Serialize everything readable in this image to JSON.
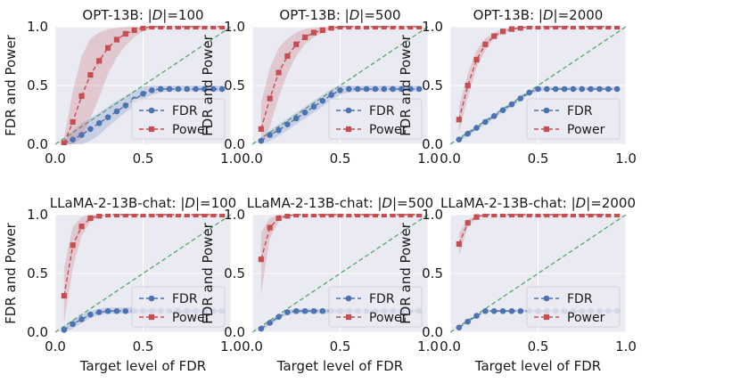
{
  "figure": {
    "xlabel": "Target level of FDR",
    "ylabel": "FDR and Power",
    "colors": {
      "background": "#eaeaf2",
      "grid": "#ffffff",
      "fdr": "#4c72b0",
      "power": "#c44e52",
      "diagonal": "#55a868"
    }
  },
  "chart_data": [
    {
      "type": "line",
      "title_prefix": "OPT-13B: |",
      "title_dset": "D",
      "title_suffix": "|=100",
      "xlim": [
        0,
        1
      ],
      "ylim": [
        0,
        1
      ],
      "xticks": [
        "0.0",
        "0.5",
        "1.0"
      ],
      "yticks": [
        "0.0",
        "0.5",
        "1.0"
      ],
      "xlabel": "",
      "ylabel": "FDR and Power",
      "legend": [
        "FDR",
        "Power"
      ],
      "x": [
        0.05,
        0.1,
        0.15,
        0.2,
        0.25,
        0.3,
        0.35,
        0.4,
        0.45,
        0.5,
        0.55,
        0.6,
        0.65,
        0.7,
        0.75,
        0.8,
        0.85,
        0.9,
        0.95
      ],
      "series": [
        {
          "name": "FDR",
          "values": [
            0.01,
            0.04,
            0.08,
            0.13,
            0.18,
            0.23,
            0.28,
            0.33,
            0.38,
            0.43,
            0.46,
            0.47,
            0.47,
            0.47,
            0.47,
            0.47,
            0.47,
            0.47,
            0.47
          ],
          "band_low": [
            0.0,
            0.0,
            0.0,
            0.03,
            0.08,
            0.15,
            0.21,
            0.27,
            0.33,
            0.38,
            0.42,
            0.44,
            0.45,
            0.45,
            0.45,
            0.45,
            0.45,
            0.45,
            0.45
          ],
          "band_high": [
            0.02,
            0.12,
            0.18,
            0.22,
            0.27,
            0.32,
            0.37,
            0.41,
            0.45,
            0.49,
            0.5,
            0.5,
            0.5,
            0.5,
            0.5,
            0.5,
            0.5,
            0.5,
            0.5
          ]
        },
        {
          "name": "Power",
          "values": [
            0.01,
            0.19,
            0.41,
            0.59,
            0.71,
            0.82,
            0.89,
            0.94,
            0.97,
            0.99,
            1.0,
            1.0,
            1.0,
            1.0,
            1.0,
            1.0,
            1.0,
            1.0,
            1.0
          ],
          "band_low": [
            0.0,
            0.0,
            0.05,
            0.22,
            0.4,
            0.6,
            0.74,
            0.84,
            0.91,
            0.96,
            0.99,
            1.0,
            1.0,
            1.0,
            1.0,
            1.0,
            1.0,
            1.0,
            1.0
          ],
          "band_high": [
            0.05,
            0.45,
            0.75,
            0.9,
            0.95,
            0.98,
            0.99,
            1.0,
            1.0,
            1.0,
            1.0,
            1.0,
            1.0,
            1.0,
            1.0,
            1.0,
            1.0,
            1.0,
            1.0
          ]
        }
      ]
    },
    {
      "type": "line",
      "title_prefix": "OPT-13B: |",
      "title_dset": "D",
      "title_suffix": "|=500",
      "xlim": [
        0,
        1
      ],
      "ylim": [
        0,
        1
      ],
      "xticks": [
        "0.0",
        "0.5",
        "1.0"
      ],
      "yticks": [
        "0.0",
        "0.5",
        "1.0"
      ],
      "xlabel": "",
      "ylabel": "FDR and Power",
      "legend": [
        "FDR",
        "Power"
      ],
      "x": [
        0.05,
        0.1,
        0.15,
        0.2,
        0.25,
        0.3,
        0.35,
        0.4,
        0.45,
        0.5,
        0.55,
        0.6,
        0.65,
        0.7,
        0.75,
        0.8,
        0.85,
        0.9,
        0.95
      ],
      "series": [
        {
          "name": "FDR",
          "values": [
            0.03,
            0.08,
            0.12,
            0.17,
            0.22,
            0.27,
            0.32,
            0.37,
            0.42,
            0.46,
            0.47,
            0.47,
            0.47,
            0.47,
            0.47,
            0.47,
            0.47,
            0.47,
            0.47
          ],
          "band_low": [
            0.0,
            0.03,
            0.07,
            0.12,
            0.17,
            0.22,
            0.27,
            0.32,
            0.38,
            0.42,
            0.44,
            0.45,
            0.45,
            0.45,
            0.45,
            0.45,
            0.45,
            0.45,
            0.45
          ],
          "band_high": [
            0.06,
            0.12,
            0.17,
            0.22,
            0.27,
            0.32,
            0.37,
            0.42,
            0.47,
            0.5,
            0.5,
            0.5,
            0.5,
            0.5,
            0.5,
            0.5,
            0.5,
            0.5,
            0.5
          ]
        },
        {
          "name": "Power",
          "values": [
            0.13,
            0.39,
            0.61,
            0.75,
            0.85,
            0.91,
            0.95,
            0.97,
            0.99,
            1.0,
            1.0,
            1.0,
            1.0,
            1.0,
            1.0,
            1.0,
            1.0,
            1.0,
            1.0
          ],
          "band_low": [
            0.0,
            0.15,
            0.4,
            0.6,
            0.75,
            0.85,
            0.91,
            0.95,
            0.98,
            0.99,
            1.0,
            1.0,
            1.0,
            1.0,
            1.0,
            1.0,
            1.0,
            1.0,
            1.0
          ],
          "band_high": [
            0.35,
            0.65,
            0.82,
            0.9,
            0.95,
            0.98,
            0.99,
            1.0,
            1.0,
            1.0,
            1.0,
            1.0,
            1.0,
            1.0,
            1.0,
            1.0,
            1.0,
            1.0,
            1.0
          ]
        }
      ]
    },
    {
      "type": "line",
      "title_prefix": "OPT-13B: |",
      "title_dset": "D",
      "title_suffix": "|=2000",
      "xlim": [
        0,
        1
      ],
      "ylim": [
        0,
        1
      ],
      "xticks": [
        "0.0",
        "0.5",
        "1.0"
      ],
      "yticks": [
        "0.0",
        "0.5",
        "1.0"
      ],
      "xlabel": "",
      "ylabel": "FDR and Power",
      "legend": [
        "FDR",
        "Power"
      ],
      "x": [
        0.05,
        0.1,
        0.15,
        0.2,
        0.25,
        0.3,
        0.35,
        0.4,
        0.45,
        0.5,
        0.55,
        0.6,
        0.65,
        0.7,
        0.75,
        0.8,
        0.85,
        0.9,
        0.95
      ],
      "series": [
        {
          "name": "FDR",
          "values": [
            0.04,
            0.09,
            0.14,
            0.19,
            0.24,
            0.29,
            0.34,
            0.39,
            0.44,
            0.47,
            0.47,
            0.47,
            0.47,
            0.47,
            0.47,
            0.47,
            0.47,
            0.47,
            0.47
          ],
          "band_low": [
            0.02,
            0.07,
            0.12,
            0.17,
            0.22,
            0.27,
            0.32,
            0.37,
            0.42,
            0.45,
            0.46,
            0.46,
            0.46,
            0.46,
            0.46,
            0.46,
            0.46,
            0.46,
            0.46
          ],
          "band_high": [
            0.06,
            0.11,
            0.16,
            0.21,
            0.26,
            0.31,
            0.36,
            0.41,
            0.46,
            0.49,
            0.49,
            0.49,
            0.49,
            0.49,
            0.49,
            0.49,
            0.49,
            0.49,
            0.49
          ]
        },
        {
          "name": "Power",
          "values": [
            0.21,
            0.5,
            0.72,
            0.85,
            0.92,
            0.96,
            0.98,
            0.99,
            1.0,
            1.0,
            1.0,
            1.0,
            1.0,
            1.0,
            1.0,
            1.0,
            1.0,
            1.0,
            1.0
          ],
          "band_low": [
            0.1,
            0.4,
            0.65,
            0.8,
            0.9,
            0.95,
            0.97,
            0.99,
            1.0,
            1.0,
            1.0,
            1.0,
            1.0,
            1.0,
            1.0,
            1.0,
            1.0,
            1.0,
            1.0
          ],
          "band_high": [
            0.32,
            0.6,
            0.8,
            0.9,
            0.95,
            0.98,
            0.99,
            1.0,
            1.0,
            1.0,
            1.0,
            1.0,
            1.0,
            1.0,
            1.0,
            1.0,
            1.0,
            1.0,
            1.0
          ]
        }
      ]
    },
    {
      "type": "line",
      "title_prefix": "LLaMA-2-13B-chat: |",
      "title_dset": "D",
      "title_suffix": "|=100",
      "xlim": [
        0,
        1
      ],
      "ylim": [
        0,
        1
      ],
      "xticks": [
        "0.0",
        "0.5",
        "1.0"
      ],
      "yticks": [
        "0.0",
        "0.5",
        "1.0"
      ],
      "xlabel": "Target level of FDR",
      "ylabel": "FDR and Power",
      "legend": [
        "FDR",
        "Power"
      ],
      "x": [
        0.05,
        0.1,
        0.15,
        0.2,
        0.25,
        0.3,
        0.35,
        0.4,
        0.45,
        0.5,
        0.55,
        0.6,
        0.65,
        0.7,
        0.75,
        0.8,
        0.85,
        0.9,
        0.95
      ],
      "series": [
        {
          "name": "FDR",
          "values": [
            0.02,
            0.07,
            0.11,
            0.15,
            0.17,
            0.18,
            0.18,
            0.18,
            0.18,
            0.18,
            0.18,
            0.18,
            0.18,
            0.18,
            0.18,
            0.18,
            0.18,
            0.18,
            0.18
          ],
          "band_low": [
            0.0,
            0.03,
            0.08,
            0.12,
            0.15,
            0.16,
            0.16,
            0.16,
            0.16,
            0.16,
            0.16,
            0.16,
            0.16,
            0.16,
            0.16,
            0.16,
            0.16,
            0.16,
            0.16
          ],
          "band_high": [
            0.05,
            0.11,
            0.15,
            0.18,
            0.2,
            0.21,
            0.21,
            0.21,
            0.21,
            0.21,
            0.21,
            0.21,
            0.21,
            0.21,
            0.21,
            0.21,
            0.21,
            0.21,
            0.21
          ]
        },
        {
          "name": "Power",
          "values": [
            0.31,
            0.74,
            0.9,
            0.97,
            0.99,
            1.0,
            1.0,
            1.0,
            1.0,
            1.0,
            1.0,
            1.0,
            1.0,
            1.0,
            1.0,
            1.0,
            1.0,
            1.0,
            1.0
          ],
          "band_low": [
            0.08,
            0.55,
            0.82,
            0.94,
            0.98,
            1.0,
            1.0,
            1.0,
            1.0,
            1.0,
            1.0,
            1.0,
            1.0,
            1.0,
            1.0,
            1.0,
            1.0,
            1.0,
            1.0
          ],
          "band_high": [
            0.55,
            0.9,
            0.98,
            1.0,
            1.0,
            1.0,
            1.0,
            1.0,
            1.0,
            1.0,
            1.0,
            1.0,
            1.0,
            1.0,
            1.0,
            1.0,
            1.0,
            1.0,
            1.0
          ]
        }
      ]
    },
    {
      "type": "line",
      "title_prefix": "LLaMA-2-13B-chat: |",
      "title_dset": "D",
      "title_suffix": "|=500",
      "xlim": [
        0,
        1
      ],
      "ylim": [
        0,
        1
      ],
      "xticks": [
        "0.0",
        "0.5",
        "1.0"
      ],
      "yticks": [
        "0.0",
        "0.5",
        "1.0"
      ],
      "xlabel": "Target level of FDR",
      "ylabel": "FDR and Power",
      "legend": [
        "FDR",
        "Power"
      ],
      "x": [
        0.05,
        0.1,
        0.15,
        0.2,
        0.25,
        0.3,
        0.35,
        0.4,
        0.45,
        0.5,
        0.55,
        0.6,
        0.65,
        0.7,
        0.75,
        0.8,
        0.85,
        0.9,
        0.95
      ],
      "series": [
        {
          "name": "FDR",
          "values": [
            0.03,
            0.08,
            0.13,
            0.17,
            0.18,
            0.18,
            0.18,
            0.18,
            0.18,
            0.18,
            0.18,
            0.18,
            0.18,
            0.18,
            0.18,
            0.18,
            0.18,
            0.18,
            0.18
          ],
          "band_low": [
            0.01,
            0.06,
            0.11,
            0.15,
            0.16,
            0.16,
            0.16,
            0.16,
            0.16,
            0.16,
            0.16,
            0.16,
            0.16,
            0.16,
            0.16,
            0.16,
            0.16,
            0.16,
            0.16
          ],
          "band_high": [
            0.05,
            0.1,
            0.15,
            0.19,
            0.2,
            0.2,
            0.2,
            0.2,
            0.2,
            0.2,
            0.2,
            0.2,
            0.2,
            0.2,
            0.2,
            0.2,
            0.2,
            0.2,
            0.2
          ]
        },
        {
          "name": "Power",
          "values": [
            0.62,
            0.89,
            0.97,
            0.99,
            1.0,
            1.0,
            1.0,
            1.0,
            1.0,
            1.0,
            1.0,
            1.0,
            1.0,
            1.0,
            1.0,
            1.0,
            1.0,
            1.0,
            1.0
          ],
          "band_low": [
            0.33,
            0.8,
            0.94,
            0.99,
            1.0,
            1.0,
            1.0,
            1.0,
            1.0,
            1.0,
            1.0,
            1.0,
            1.0,
            1.0,
            1.0,
            1.0,
            1.0,
            1.0,
            1.0
          ],
          "band_high": [
            0.85,
            0.97,
            1.0,
            1.0,
            1.0,
            1.0,
            1.0,
            1.0,
            1.0,
            1.0,
            1.0,
            1.0,
            1.0,
            1.0,
            1.0,
            1.0,
            1.0,
            1.0,
            1.0
          ]
        }
      ]
    },
    {
      "type": "line",
      "title_prefix": "LLaMA-2-13B-chat: |",
      "title_dset": "D",
      "title_suffix": "|=2000",
      "xlim": [
        0,
        1
      ],
      "ylim": [
        0,
        1
      ],
      "xticks": [
        "0.0",
        "0.5",
        "1.0"
      ],
      "yticks": [
        "0.0",
        "0.5",
        "1.0"
      ],
      "xlabel": "Target level of FDR",
      "ylabel": "FDR and Power",
      "legend": [
        "FDR",
        "Power"
      ],
      "x": [
        0.05,
        0.1,
        0.15,
        0.2,
        0.25,
        0.3,
        0.35,
        0.4,
        0.45,
        0.5,
        0.55,
        0.6,
        0.65,
        0.7,
        0.75,
        0.8,
        0.85,
        0.9,
        0.95
      ],
      "series": [
        {
          "name": "FDR",
          "values": [
            0.04,
            0.09,
            0.14,
            0.18,
            0.18,
            0.18,
            0.18,
            0.18,
            0.18,
            0.18,
            0.18,
            0.18,
            0.18,
            0.18,
            0.18,
            0.18,
            0.18,
            0.18,
            0.18
          ],
          "band_low": [
            0.03,
            0.08,
            0.13,
            0.17,
            0.17,
            0.17,
            0.17,
            0.17,
            0.17,
            0.17,
            0.17,
            0.17,
            0.17,
            0.17,
            0.17,
            0.17,
            0.17,
            0.17,
            0.17
          ],
          "band_high": [
            0.05,
            0.1,
            0.15,
            0.19,
            0.19,
            0.19,
            0.19,
            0.19,
            0.19,
            0.19,
            0.19,
            0.19,
            0.19,
            0.19,
            0.19,
            0.19,
            0.19,
            0.19,
            0.19
          ]
        },
        {
          "name": "Power",
          "values": [
            0.75,
            0.93,
            0.98,
            1.0,
            1.0,
            1.0,
            1.0,
            1.0,
            1.0,
            1.0,
            1.0,
            1.0,
            1.0,
            1.0,
            1.0,
            1.0,
            1.0,
            1.0,
            1.0
          ],
          "band_low": [
            0.65,
            0.9,
            0.97,
            1.0,
            1.0,
            1.0,
            1.0,
            1.0,
            1.0,
            1.0,
            1.0,
            1.0,
            1.0,
            1.0,
            1.0,
            1.0,
            1.0,
            1.0,
            1.0
          ],
          "band_high": [
            0.84,
            0.96,
            0.99,
            1.0,
            1.0,
            1.0,
            1.0,
            1.0,
            1.0,
            1.0,
            1.0,
            1.0,
            1.0,
            1.0,
            1.0,
            1.0,
            1.0,
            1.0,
            1.0
          ]
        }
      ]
    }
  ]
}
